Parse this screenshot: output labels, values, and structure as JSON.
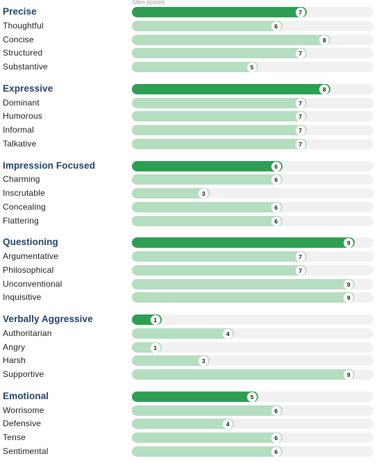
{
  "chart_data": {
    "type": "bar",
    "orientation": "horizontal",
    "scale_label": "Sten scores",
    "xlim": [
      0,
      10
    ],
    "grid": false,
    "legend": "none",
    "colors": {
      "group_fill": "#2e9e52",
      "item_fill": "#b5ddc0",
      "track": "#f1f1f1",
      "group_label": "#1f3f68"
    },
    "groups": [
      {
        "name": "Precise",
        "value": 7,
        "items": [
          {
            "label": "Thoughtful",
            "value": 6
          },
          {
            "label": "Concise",
            "value": 8
          },
          {
            "label": "Structured",
            "value": 7
          },
          {
            "label": "Substantive",
            "value": 5
          }
        ]
      },
      {
        "name": "Expressive",
        "value": 8,
        "items": [
          {
            "label": "Dominant",
            "value": 7
          },
          {
            "label": "Humorous",
            "value": 7
          },
          {
            "label": "Informal",
            "value": 7
          },
          {
            "label": "Talkative",
            "value": 7
          }
        ]
      },
      {
        "name": "Impression Focused",
        "value": 6,
        "items": [
          {
            "label": "Charming",
            "value": 6
          },
          {
            "label": "Inscrutable",
            "value": 3
          },
          {
            "label": "Concealing",
            "value": 6
          },
          {
            "label": "Flattering",
            "value": 6
          }
        ]
      },
      {
        "name": "Questioning",
        "value": 9,
        "items": [
          {
            "label": "Argumentative",
            "value": 7
          },
          {
            "label": "Philosophical",
            "value": 7
          },
          {
            "label": "Unconventional",
            "value": 9
          },
          {
            "label": "Inquisitive",
            "value": 9
          }
        ]
      },
      {
        "name": "Verbally Aggressive",
        "value": 1,
        "items": [
          {
            "label": "Authoritarian",
            "value": 4
          },
          {
            "label": "Angry",
            "value": 1
          },
          {
            "label": "Harsh",
            "value": 3
          },
          {
            "label": "Supportive",
            "value": 9
          }
        ]
      },
      {
        "name": "Emotional",
        "value": 5,
        "items": [
          {
            "label": "Worrisome",
            "value": 6
          },
          {
            "label": "Defensive",
            "value": 4
          },
          {
            "label": "Tense",
            "value": 6
          },
          {
            "label": "Sentimental",
            "value": 6
          }
        ]
      }
    ]
  }
}
